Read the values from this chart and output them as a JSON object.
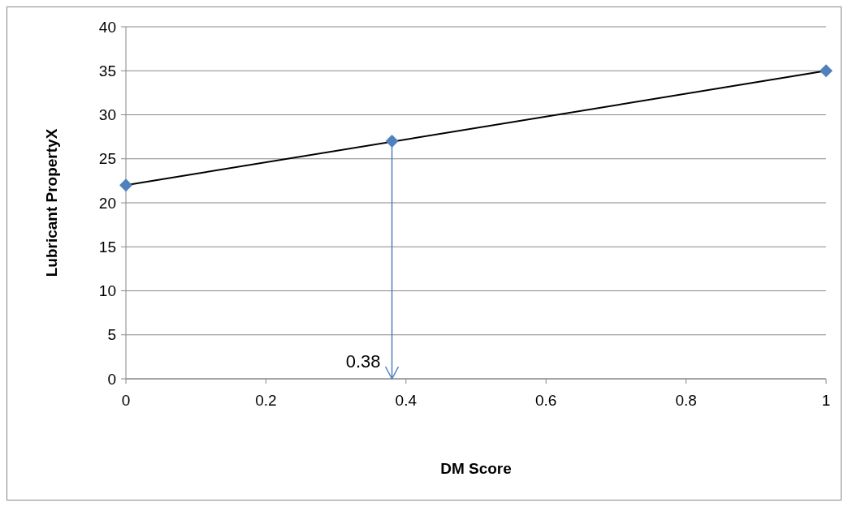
{
  "chart_data": {
    "type": "scatter",
    "xlabel": "DM Score",
    "ylabel": "Lubricant PropertyX",
    "xlim": [
      0,
      1
    ],
    "xticks": [
      0,
      0.2,
      0.4,
      0.6,
      0.8,
      1
    ],
    "ylim": [
      0,
      40
    ],
    "yticks": [
      0,
      5,
      10,
      15,
      20,
      25,
      30,
      35,
      40
    ],
    "grid": "y",
    "marker": "diamond",
    "series": [
      {
        "color": "#4f81bd",
        "x": [
          0,
          0.38,
          1
        ],
        "values": [
          22,
          27,
          35
        ]
      },
      {
        "type": "line",
        "color": "#000000",
        "x": [
          0,
          1
        ],
        "values": [
          22,
          35
        ],
        "marker": "none",
        "line_style": "solid"
      }
    ],
    "ref_lines": [
      {
        "axis": "x",
        "value": 0.38,
        "label": "0.38",
        "color": "#4f81bd"
      }
    ]
  }
}
